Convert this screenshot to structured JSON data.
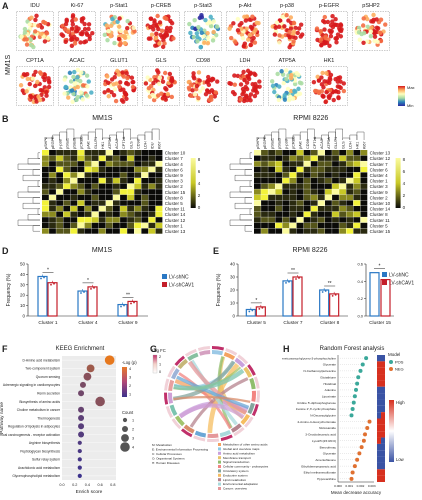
{
  "panelA": {
    "letter": "A",
    "row_label": "MM1S",
    "markers_row1": [
      "IDU",
      "Ki-67",
      "p-Stat1",
      "p-CREB",
      "p-Stat3",
      "p-Akt",
      "p-p38",
      "p-EGFR",
      "pSHP2"
    ],
    "markers_row2": [
      "CPT1A",
      "ACAC",
      "GLUT1",
      "GLS",
      "CD98",
      "LDH",
      "ATP5A",
      "HK1"
    ],
    "scale_max": "Max",
    "scale_min": "Min"
  },
  "panelB": {
    "letter": "B",
    "title": "MM1S",
    "columns": [
      "pSHP2",
      "pEGFR",
      "p-p38",
      "pStat1",
      "pStat3",
      "pCREB",
      "pAkt",
      "GLUT1",
      "HK1",
      "ATP5A",
      "ACAC",
      "CPT1A",
      "GLS",
      "CD98",
      "LDH",
      "IDU",
      "Ki67"
    ],
    "rows": [
      "Cluster 10",
      "Cluster 7",
      "Cluster 4",
      "Cluster 6",
      "Cluster 9",
      "Cluster 3",
      "Cluster 2",
      "Cluster 15",
      "Cluster 8",
      "Cluster 5",
      "Cluster 11",
      "Cluster 14",
      "Cluster 12",
      "Cluster 1",
      "Cluster 13"
    ],
    "scale": [
      "8",
      "6",
      "4",
      "2",
      "0"
    ]
  },
  "panelC": {
    "letter": "C",
    "title": "RPMI 8226",
    "columns": [
      "pSHP2",
      "pEGFR",
      "pStat1",
      "pStat3",
      "p-p38",
      "pCREB",
      "pAkt",
      "CD98",
      "CPT1A",
      "ACAC",
      "ATP5A",
      "GLUT1",
      "GLS",
      "LDH",
      "HK1",
      "Ki67"
    ],
    "rows": [
      "Cluster 13",
      "Cluster 12",
      "Cluster 7",
      "Cluster 6",
      "Cluster 4",
      "Cluster 1",
      "Cluster 3",
      "Cluster 9",
      "Cluster 2",
      "Cluster 10",
      "Cluster 14",
      "Cluster 8",
      "Cluster 11",
      "Cluster 5",
      "Cluster 15"
    ],
    "scale": [
      "8",
      "6",
      "4",
      "2",
      "0"
    ]
  },
  "panelD": {
    "letter": "D",
    "chart_data": {
      "type": "bar",
      "title": "MM1S",
      "ylabel": "Frequency (%)",
      "ylim": [
        0,
        50
      ],
      "yticks": [
        "0",
        "10",
        "20",
        "30",
        "40",
        "50"
      ],
      "categories": [
        "Cluster 1",
        "Cluster 4",
        "Cluster 9"
      ],
      "series": [
        {
          "name": "LV-shNC",
          "color": "#2a78c4",
          "values": [
            38,
            24,
            11
          ]
        },
        {
          "name": "LV-shCAV1",
          "color": "#c41e2a",
          "values": [
            32,
            28,
            14
          ]
        }
      ],
      "significance": [
        "*",
        "*",
        "**"
      ]
    }
  },
  "panelE": {
    "letter": "E",
    "chart_data": {
      "type": "bar",
      "title": "RPMI 8226",
      "ylabel": "Frequency (%)",
      "ylim": [
        0,
        40
      ],
      "yticks": [
        "0",
        "10",
        "20",
        "30",
        "40"
      ],
      "categories": [
        "Cluster 5",
        "Cluster 7",
        "Cluster 8"
      ],
      "series": [
        {
          "name": "LV-shNC",
          "color": "#2a78c4",
          "values": [
            5,
            27,
            20
          ]
        },
        {
          "name": "LV-shCAV1",
          "color": "#c41e2a",
          "values": [
            7,
            30,
            17
          ]
        }
      ],
      "significance": [
        "*",
        "**",
        "**"
      ],
      "inset": {
        "category": "Cluster 15",
        "ylim": [
          0,
          0.6
        ],
        "yticks": [
          "0.0",
          "0.2",
          "0.4",
          "0.6"
        ],
        "values": [
          0.5,
          0.42
        ],
        "significance": "*"
      }
    }
  },
  "panelF": {
    "letter": "F",
    "chart_data": {
      "type": "scatter",
      "title": "KEEG Enrichment",
      "xlabel": "Enrich score",
      "ylabel": "Pathway name",
      "xticks": [
        "0.0",
        "0.2",
        "0.4",
        "0.6",
        "0.8"
      ],
      "pathways": [
        {
          "name": "D-Amino acid metabolism",
          "x": 0.75,
          "logp": 4.5,
          "count": 4
        },
        {
          "name": "Two-component system",
          "x": 0.45,
          "logp": 3.0,
          "count": 3
        },
        {
          "name": "Quorum sensing",
          "x": 0.4,
          "logp": 2.5,
          "count": 3
        },
        {
          "name": "Adrenergic signaling in cardiomyocytes",
          "x": 0.33,
          "logp": 2.2,
          "count": 2
        },
        {
          "name": "Renin secretion",
          "x": 0.3,
          "logp": 2.0,
          "count": 2
        },
        {
          "name": "Biosynthesis of amino acids",
          "x": 0.6,
          "logp": 2.5,
          "count": 4
        },
        {
          "name": "Choline metabolism in cancer",
          "x": 0.3,
          "logp": 1.8,
          "count": 2
        },
        {
          "name": "Thermogenesis",
          "x": 0.3,
          "logp": 1.6,
          "count": 2
        },
        {
          "name": "Regulation of lipolysis in adipocytes",
          "x": 0.3,
          "logp": 1.5,
          "count": 2
        },
        {
          "name": "Chemical carcinogenesis - receptor activation",
          "x": 0.3,
          "logp": 1.4,
          "count": 2
        },
        {
          "name": "Arginine biosynthesis",
          "x": 0.28,
          "logp": 1.3,
          "count": 1
        },
        {
          "name": "Peptidoglycan biosynthesis",
          "x": 0.28,
          "logp": 1.2,
          "count": 1
        },
        {
          "name": "Sulfur relay system",
          "x": 0.28,
          "logp": 1.1,
          "count": 1
        },
        {
          "name": "Arachidonic acid metabolism",
          "x": 0.28,
          "logp": 1.0,
          "count": 1
        },
        {
          "name": "Glycerophospholipid metabolism",
          "x": 0.28,
          "logp": 0.9,
          "count": 1
        }
      ],
      "legend_color_title": "-Log (p)",
      "legend_color_ticks": [
        "4",
        "3",
        "2",
        "1"
      ],
      "legend_size_title": "Count",
      "legend_size_ticks": [
        "1",
        "2",
        "3",
        "4"
      ]
    }
  },
  "panelG": {
    "letter": "G",
    "logfc_label": "Log FC",
    "logfc_ticks": [
      "2",
      "1",
      "0"
    ],
    "category_legend": [
      {
        "code": "M",
        "label": "Metabolism"
      },
      {
        "code": "E",
        "label": "Environmental Information Processing"
      },
      {
        "code": "C",
        "label": "Cellular Processes"
      },
      {
        "code": "O",
        "label": "Organismal Systems"
      },
      {
        "code": "H",
        "label": "Human Diseases"
      }
    ],
    "pathway_legend": [
      {
        "label": "Metabolism of other amino acids",
        "color": "#f4a261"
      },
      {
        "label": "Global and overview maps",
        "color": "#8ecae6"
      },
      {
        "label": "Amino acid metabolism",
        "color": "#c9a0dc"
      },
      {
        "label": "Membrane transport",
        "color": "#e9c46a"
      },
      {
        "label": "Signal transduction",
        "color": "#90be6d"
      },
      {
        "label": "Cellular community - prokaryotes",
        "color": "#f28482"
      },
      {
        "label": "Circulatory system",
        "color": "#84a59d"
      },
      {
        "label": "Endocrine system",
        "color": "#f6bd60"
      },
      {
        "label": "Lipid metabolism",
        "color": "#b5838d"
      },
      {
        "label": "Environmental adaptation",
        "color": "#a8dadc"
      },
      {
        "label": "Cancer: overview",
        "color": "#e5989b"
      }
    ]
  },
  "panelH": {
    "letter": "H",
    "chart_data": {
      "type": "scatter",
      "title": "Random Forest analysis",
      "xlabel": "Mean decrease accuracy",
      "xticks": [
        "0.000",
        "0.001",
        "0.002",
        "0.003"
      ],
      "features": [
        {
          "name": "1-Heneicosanoyl-glycero-3-phosphocholine",
          "value": 0.0025,
          "group": "POS"
        },
        {
          "name": "Glycerate",
          "value": 0.0022,
          "group": "POS"
        },
        {
          "name": "N-Carbamoylputrescine",
          "value": 0.002,
          "group": "POS"
        },
        {
          "name": "Glutathione",
          "value": 0.0018,
          "group": "POS"
        },
        {
          "name": "Histidinal",
          "value": 0.0017,
          "group": "POS"
        },
        {
          "name": "Adenine",
          "value": 0.0016,
          "group": "POS"
        },
        {
          "name": "Lipoxinate",
          "value": 0.0015,
          "group": "POS"
        },
        {
          "name": "Uridine 5'-diphosphoglucose",
          "value": 0.0014,
          "group": "POS"
        },
        {
          "name": "Inosine 2',3'-cyclic phosphate",
          "value": 0.0013,
          "group": "POS"
        },
        {
          "name": "N-Decanoylglycine",
          "value": 0.0012,
          "group": "POS"
        },
        {
          "name": "4-Amino-4-deoxychorismate",
          "value": 0.0028,
          "group": "NEG"
        },
        {
          "name": "Niclosamide",
          "value": 0.0026,
          "group": "NEG"
        },
        {
          "name": "3-Oxododecanoic acid",
          "value": 0.0024,
          "group": "NEG"
        },
        {
          "name": "LysoPC(15:0/0:0)",
          "value": 0.0023,
          "group": "NEG"
        },
        {
          "name": "Benzofenac",
          "value": 0.0021,
          "group": "NEG"
        },
        {
          "name": "Glycerate",
          "value": 0.0019,
          "group": "NEG"
        },
        {
          "name": "Amentoflavone",
          "value": 0.0017,
          "group": "NEG"
        },
        {
          "name": "Ethylidenepropanoic acid",
          "value": 0.0015,
          "group": "NEG"
        },
        {
          "name": "Ethyl methanesulfonate",
          "value": 0.0013,
          "group": "NEG"
        },
        {
          "name": "Hypoxanthine",
          "value": 0.0012,
          "group": "NEG"
        }
      ],
      "model_legend_title": "Model",
      "model_legend": [
        {
          "label": "POS",
          "color": "#3aa89a"
        },
        {
          "label": "NEG",
          "color": "#e07030"
        }
      ],
      "heat_legend_high": "High",
      "heat_legend_low": "Low"
    }
  }
}
